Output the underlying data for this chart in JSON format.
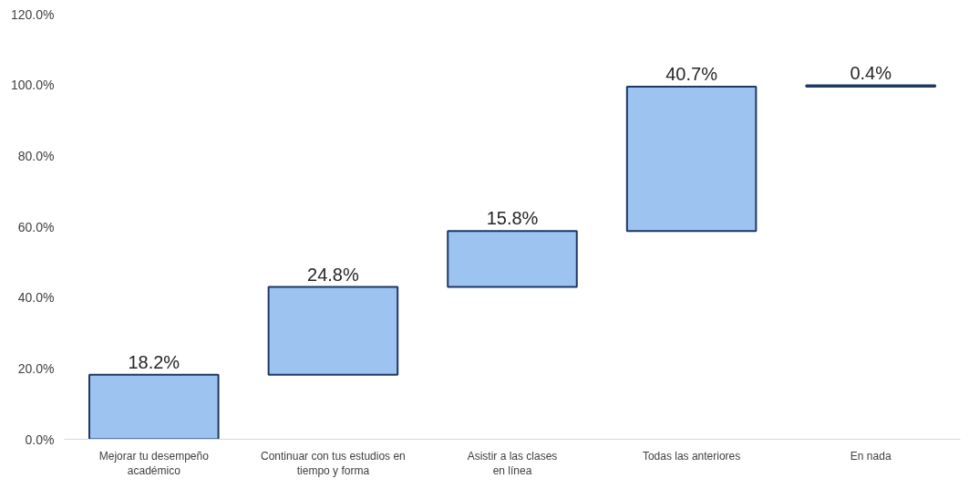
{
  "chart_data": {
    "type": "bar",
    "categories": [
      "Mejorar tu desempeño\nacadémico",
      "Continuar con tus estudios en\ntiempo y forma",
      "Asistir a las clases\nen línea",
      "Todas las anteriores",
      "En nada"
    ],
    "values": [
      18.2,
      24.8,
      15.8,
      40.7,
      0.4
    ],
    "base": [
      0,
      18.2,
      43.0,
      58.8,
      99.5
    ],
    "value_labels": [
      "18.2%",
      "24.8%",
      "15.8%",
      "40.7%",
      "0.4%"
    ],
    "color": "#9dc3f0",
    "ylim": [
      0,
      120
    ],
    "yticks": [
      {
        "value": 0,
        "label": "0.0%"
      },
      {
        "value": 20,
        "label": "20.0%"
      },
      {
        "value": 40,
        "label": "40.0%"
      },
      {
        "value": 60,
        "label": "60.0%"
      },
      {
        "value": 80,
        "label": "80.0%"
      },
      {
        "value": 100,
        "label": "100.0%"
      },
      {
        "value": 120,
        "label": "120.0%"
      }
    ],
    "grid": false
  }
}
